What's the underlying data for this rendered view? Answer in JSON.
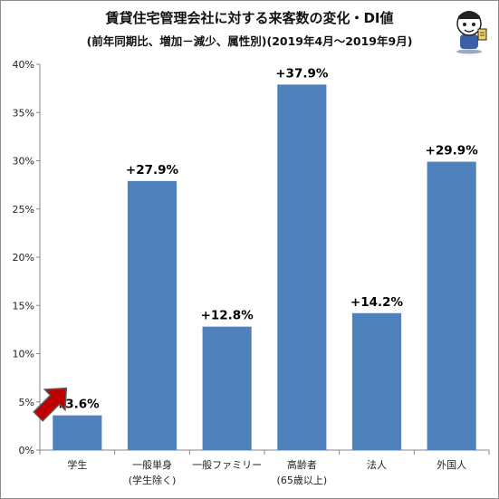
{
  "chart_data": {
    "type": "bar",
    "title": "賃貸住宅管理会社に対する来客数の変化・DI値",
    "subtitle": "(前年同期比、増加－減少、属性別)(2019年4月～2019年9月)",
    "categories": [
      [
        "学生"
      ],
      [
        "一般単身",
        "(学生除く)"
      ],
      [
        "一般ファミリー"
      ],
      [
        "高齢者",
        "(65歳以上)"
      ],
      [
        "法人"
      ],
      [
        "外国人"
      ]
    ],
    "values": [
      3.6,
      27.9,
      12.8,
      37.9,
      14.2,
      29.9
    ],
    "data_labels": [
      "+3.6%",
      "+27.9%",
      "+12.8%",
      "+37.9%",
      "+14.2%",
      "+29.9%"
    ],
    "ylim": [
      0,
      40
    ],
    "y_ticks": [
      0,
      5,
      10,
      15,
      20,
      25,
      30,
      35,
      40
    ],
    "y_tick_labels": [
      "0%",
      "5%",
      "10%",
      "15%",
      "20%",
      "25%",
      "30%",
      "35%",
      "40%"
    ],
    "xlabel": "",
    "ylabel": "",
    "grid": false,
    "legend": "none",
    "highlighted_category": "学生",
    "colors": {
      "bar": "#4f81bd",
      "axis": "#868686",
      "arrow": "#c00000"
    }
  },
  "decorations": {
    "mascot_icon": "cartoon-character-logo-icon",
    "arrow_icon": "red-pointer-arrow-icon"
  }
}
